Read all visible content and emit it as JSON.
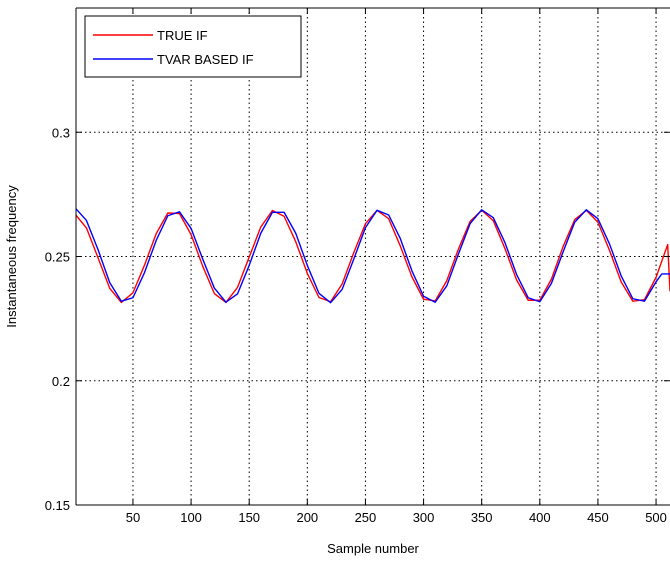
{
  "chart_data": {
    "type": "line",
    "title": "",
    "xlabel": "Sample number",
    "ylabel": "Instantaneous frequency",
    "xlim": [
      1,
      512
    ],
    "ylim": [
      0.15,
      0.35
    ],
    "xticks": [
      50,
      100,
      150,
      200,
      250,
      300,
      350,
      400,
      450,
      500
    ],
    "yticks": [
      0.15,
      0.2,
      0.25,
      0.3
    ],
    "ytick_labels": [
      "0.15",
      "0.2",
      "0.25",
      "0.3"
    ],
    "grid": true,
    "legend_position": "top-left",
    "series": [
      {
        "name": "TRUE IF",
        "color": "#ff0000",
        "x": [
          1,
          10,
          20,
          30,
          40,
          50,
          60,
          70,
          80,
          90,
          100,
          110,
          120,
          130,
          140,
          150,
          160,
          170,
          180,
          190,
          200,
          210,
          220,
          230,
          240,
          250,
          260,
          270,
          280,
          290,
          300,
          310,
          320,
          330,
          340,
          350,
          360,
          370,
          380,
          390,
          400,
          410,
          420,
          430,
          440,
          450,
          460,
          470,
          480,
          490,
          500,
          510,
          512
        ],
        "y": [
          0.2666,
          0.2615,
          0.2494,
          0.2372,
          0.2315,
          0.2354,
          0.2466,
          0.2592,
          0.2675,
          0.2673,
          0.2588,
          0.2461,
          0.2351,
          0.2315,
          0.2376,
          0.2498,
          0.2619,
          0.2685,
          0.2662,
          0.256,
          0.2432,
          0.2335,
          0.2318,
          0.239,
          0.2516,
          0.2632,
          0.2686,
          0.2652,
          0.2542,
          0.2418,
          0.2328,
          0.2321,
          0.2403,
          0.253,
          0.2641,
          0.2686,
          0.2644,
          0.2532,
          0.2406,
          0.2324,
          0.2324,
          0.2409,
          0.254,
          0.2648,
          0.2686,
          0.2638,
          0.2524,
          0.2398,
          0.232,
          0.2326,
          0.2416,
          0.2548,
          0.236
        ]
      },
      {
        "name": "TVAR BASED IF",
        "color": "#0000ff",
        "x": [
          1,
          10,
          20,
          30,
          40,
          50,
          60,
          70,
          80,
          90,
          100,
          110,
          120,
          130,
          140,
          150,
          160,
          170,
          180,
          190,
          200,
          210,
          220,
          230,
          240,
          250,
          260,
          270,
          280,
          290,
          300,
          310,
          320,
          330,
          340,
          350,
          360,
          370,
          380,
          390,
          400,
          410,
          420,
          430,
          440,
          450,
          460,
          470,
          480,
          490,
          500,
          505,
          512
        ],
        "y": [
          0.2692,
          0.2645,
          0.2527,
          0.2395,
          0.232,
          0.2334,
          0.2436,
          0.2565,
          0.2664,
          0.268,
          0.2613,
          0.249,
          0.2373,
          0.2316,
          0.235,
          0.2464,
          0.2594,
          0.2678,
          0.2678,
          0.2594,
          0.2464,
          0.2352,
          0.2314,
          0.2368,
          0.249,
          0.2616,
          0.2686,
          0.2667,
          0.2572,
          0.2442,
          0.234,
          0.2316,
          0.2382,
          0.251,
          0.2632,
          0.2688,
          0.2656,
          0.2556,
          0.2428,
          0.2334,
          0.2318,
          0.2392,
          0.2518,
          0.2638,
          0.2688,
          0.2652,
          0.255,
          0.2422,
          0.233,
          0.232,
          0.2398,
          0.243,
          0.243
        ]
      }
    ]
  }
}
